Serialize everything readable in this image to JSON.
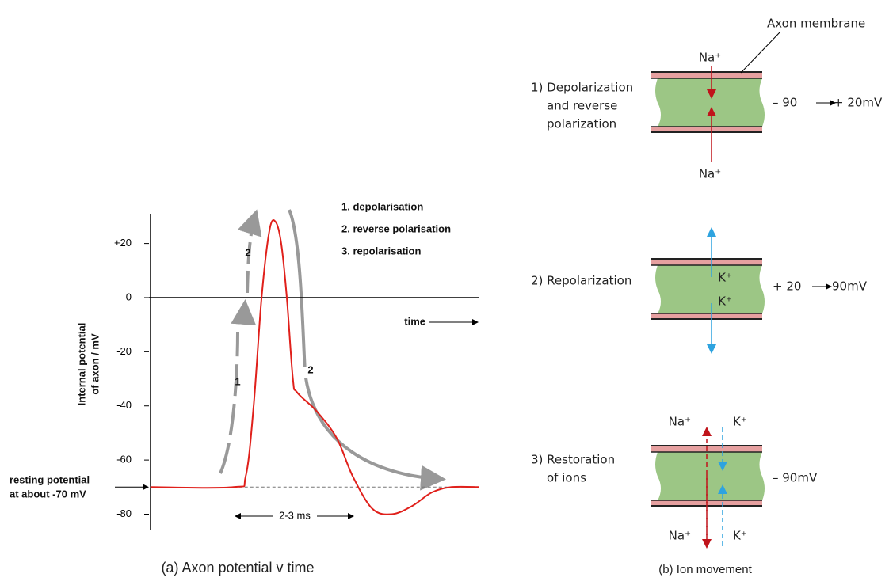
{
  "chart_data": {
    "type": "line",
    "caption": "(a) Axon potential v time",
    "ylabel": [
      "Internal potential",
      "of axon / mV"
    ],
    "xlabel": "time",
    "x": [
      0.03,
      1.81,
      2.07,
      2.24,
      2.41,
      2.58,
      2.71,
      2.83,
      2.95,
      3.08,
      3.17,
      3.59,
      4.02,
      4.36,
      4.78,
      5.2,
      5.63,
      6.05,
      6.47,
      7.07
    ],
    "series": [
      {
        "name": "Internal potential",
        "color": "#e0201b",
        "values": [
          -70,
          -70,
          -66,
          -40,
          0,
          25,
          28,
          20,
          0,
          -30,
          -35,
          -42,
          -52,
          -66,
          -78,
          -80,
          -77,
          -72,
          -70,
          -70
        ]
      }
    ],
    "xlim": [
      0,
      7.07
    ],
    "ylim": [
      -86,
      31
    ],
    "yticks": [
      {
        "value": 20,
        "label": "+20"
      },
      0,
      -20,
      -40,
      -60,
      -80
    ],
    "reference_line": {
      "value": -70,
      "label": [
        "resting potential",
        "at about -70 mV"
      ]
    },
    "duration_label": "2-3 ms",
    "phase_labels": [
      "1",
      "2",
      "2"
    ],
    "legend_items": [
      "1.  depolarisation",
      "2.  reverse polarisation",
      "3.  repolarisation"
    ]
  },
  "ion_diagram": {
    "caption": "(b) Ion movement",
    "membrane_label": "Axon membrane",
    "panels": [
      {
        "title": [
          "1) Depolarization",
          "and reverse",
          "polarization"
        ],
        "ions": [
          "Na⁺",
          "Na⁺"
        ],
        "voltage": [
          "– 90",
          "+ 20mV"
        ]
      },
      {
        "title": [
          "2) Repolarization"
        ],
        "ions": [
          "K⁺",
          "K⁺"
        ],
        "voltage": [
          "+ 20",
          "90mV"
        ]
      },
      {
        "title": [
          "3) Restoration",
          "of ions"
        ],
        "ions": [
          "Na⁺",
          "K⁺",
          "Na⁺",
          "K⁺"
        ],
        "voltage": [
          "– 90mV"
        ]
      }
    ]
  }
}
